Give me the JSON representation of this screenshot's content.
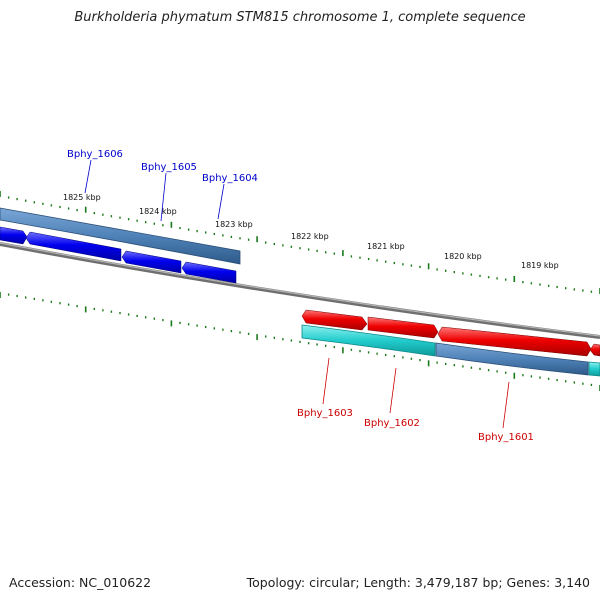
{
  "title": "Burkholderia phymatum STM815 chromosome 1, complete sequence",
  "footer": {
    "accession": "Accession: NC_010622",
    "summary": "Topology: circular; Length: 3,479,187 bp; Genes: 3,140"
  },
  "ticks": [
    {
      "label": "1825 kbp"
    },
    {
      "label": "1824 kbp"
    },
    {
      "label": "1823 kbp"
    },
    {
      "label": "1822 kbp"
    },
    {
      "label": "1821 kbp"
    },
    {
      "label": "1820 kbp"
    },
    {
      "label": "1819 kbp"
    }
  ],
  "genes": [
    {
      "name": "Bphy_1606",
      "strand": "reverse",
      "label_color": "#0000cc"
    },
    {
      "name": "Bphy_1605",
      "strand": "reverse",
      "label_color": "#0000cc"
    },
    {
      "name": "Bphy_1604",
      "strand": "reverse",
      "label_color": "#0000cc"
    },
    {
      "name": "Bphy_1603",
      "strand": "forward",
      "label_color": "#cc0000"
    },
    {
      "name": "Bphy_1602",
      "strand": "forward",
      "label_color": "#cc0000"
    },
    {
      "name": "Bphy_1601",
      "strand": "forward",
      "label_color": "#cc0000"
    }
  ],
  "colors": {
    "reverse_gene": "#0000ee",
    "forward_gene": "#ee0000",
    "cds_blue": "#4a7fb5",
    "cds_cyan": "#22cccc",
    "backbone": "#888888",
    "tick": "#1a7a1a"
  }
}
